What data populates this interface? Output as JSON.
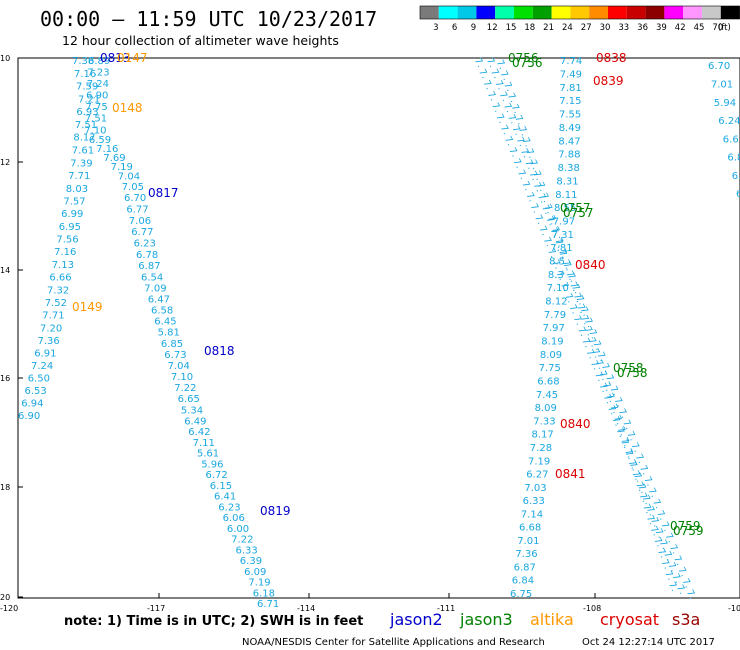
{
  "header": {
    "title": "00:00 – 11:59 UTC 10/23/2017",
    "subtitle": "12 hour collection of altimeter wave heights"
  },
  "scale": {
    "colors": [
      "#7a7a7a",
      "#00ffff",
      "#00c8e6",
      "#0000ff",
      "#00ffaa",
      "#00e000",
      "#00a000",
      "#ffff00",
      "#ffc800",
      "#ff8c00",
      "#ff0000",
      "#c80000",
      "#8c0000",
      "#ff00ff",
      "#ff96ff",
      "#c8c8c8",
      "#000000"
    ],
    "labels": [
      "3",
      "6",
      "9",
      "12",
      "15",
      "18",
      "21",
      "24",
      "27",
      "30",
      "33",
      "36",
      "39",
      "42",
      "45",
      "70"
    ],
    "unit": "(ft)"
  },
  "axes": {
    "y_ticks": [
      "10",
      "12",
      "14",
      "16",
      "18",
      "20"
    ],
    "x_ticks": [
      "-120",
      "-117",
      "-114",
      "-111",
      "-108",
      "-10"
    ]
  },
  "note": "note: 1) Time is in UTC; 2) SWH is in feet",
  "missions": [
    {
      "name": "jason2",
      "color": "#0000cc"
    },
    {
      "name": "jason3",
      "color": "#008000"
    },
    {
      "name": "altika",
      "color": "#ff9900"
    },
    {
      "name": "cryosat",
      "color": "#dd0000"
    },
    {
      "name": "s3a",
      "color": "#990000"
    }
  ],
  "footer": {
    "credit": "NOAA/NESDIS Center for Satellite Applications and Research",
    "timestamp": "Oct 24 12:27:14 UTC 2017"
  },
  "tracks": [
    {
      "name": "track-left-a",
      "color": "#1aa7e0",
      "values": [
        "7.38",
        "7.16",
        "7.59",
        "7.21",
        "6.93",
        "7.51",
        "8.17",
        "7.61",
        "7.39",
        "7.71",
        "8.03",
        "7.57",
        "6.99",
        "6.95",
        "7.56",
        "7.16",
        "7.13",
        "6.66",
        "7.32",
        "7.52",
        "7.71",
        "7.20",
        "7.36",
        "6.91",
        "7.24",
        "6.50",
        "6.53",
        "6.94",
        "6.90"
      ]
    },
    {
      "name": "track-left-b",
      "color": "#1aa7e0",
      "values": [
        "6.89",
        "7.23",
        "7.24",
        "6.90",
        "7.75",
        "7.51",
        "7.10",
        "6.59",
        "7.16",
        "7.69",
        "7.19",
        "7.04",
        "7.05",
        "6.70",
        "6.77",
        "7.06",
        "6.77",
        "6.23",
        "6.78",
        "6.87",
        "6.54",
        "7.09",
        "6.47",
        "6.58",
        "6.45",
        "5.81",
        "6.85",
        "6.73",
        "7.04",
        "7.10",
        "7.22",
        "6.65",
        "5.34",
        "6.49",
        "6.42",
        "7.11",
        "5.61",
        "5.96",
        "6.72",
        "6.15",
        "6.41",
        "6.23",
        "6.06",
        "6.00",
        "7.22",
        "6.33",
        "6.39",
        "6.09",
        "7.19",
        "6.18",
        "6.71"
      ]
    },
    {
      "name": "track-right",
      "color": "#1aa7e0",
      "values": [
        "7.74",
        "7.49",
        "7.81",
        "7.15",
        "7.55",
        "8.49",
        "8.47",
        "7.88",
        "8.38",
        "8.31",
        "8.11",
        "8.55",
        "7.97",
        "7.31",
        "7.81",
        "8.5",
        "8.3",
        "7.10",
        "8.12",
        "7.79",
        "7.97",
        "8.19",
        "8.09",
        "7.75",
        "6.68",
        "7.45",
        "8.09",
        "7.33",
        "8.17",
        "7.28",
        "7.19",
        "6.27",
        "7.03",
        "6.33",
        "7.14",
        "6.68",
        "7.01",
        "7.36",
        "6.87",
        "6.84",
        "6.75"
      ]
    },
    {
      "name": "track-far-right",
      "color": "#1aa7e0",
      "values": [
        "6.70",
        "7.01",
        "5.94",
        "6.24",
        "6.6",
        "6.8",
        "6.3",
        "6."
      ]
    }
  ],
  "time_labels": [
    {
      "text": "0813",
      "mission": "jason2",
      "color": "#0000cc"
    },
    {
      "text": "0147",
      "mission": "altika",
      "color": "#ff9900"
    },
    {
      "text": "0148",
      "mission": "altika",
      "color": "#ff9900"
    },
    {
      "text": "0817",
      "mission": "jason2",
      "color": "#0000cc"
    },
    {
      "text": "0149",
      "mission": "altika",
      "color": "#ff9900"
    },
    {
      "text": "0818",
      "mission": "jason2",
      "color": "#0000cc"
    },
    {
      "text": "0819",
      "mission": "jason2",
      "color": "#0000cc"
    },
    {
      "text": "0756",
      "mission": "jason3",
      "color": "#008000"
    },
    {
      "text": "0838",
      "mission": "cryosat",
      "color": "#dd0000"
    },
    {
      "text": "0839",
      "mission": "cryosat",
      "color": "#dd0000"
    },
    {
      "text": "0757",
      "mission": "jason3",
      "color": "#008000"
    },
    {
      "text": "0840",
      "mission": "cryosat",
      "color": "#dd0000"
    },
    {
      "text": "0758",
      "mission": "jason3",
      "color": "#008000"
    },
    {
      "text": "0840",
      "mission": "cryosat",
      "color": "#dd0000"
    },
    {
      "text": "0841",
      "mission": "cryosat",
      "color": "#dd0000"
    },
    {
      "text": "0759",
      "mission": "jason3",
      "color": "#008000"
    }
  ]
}
